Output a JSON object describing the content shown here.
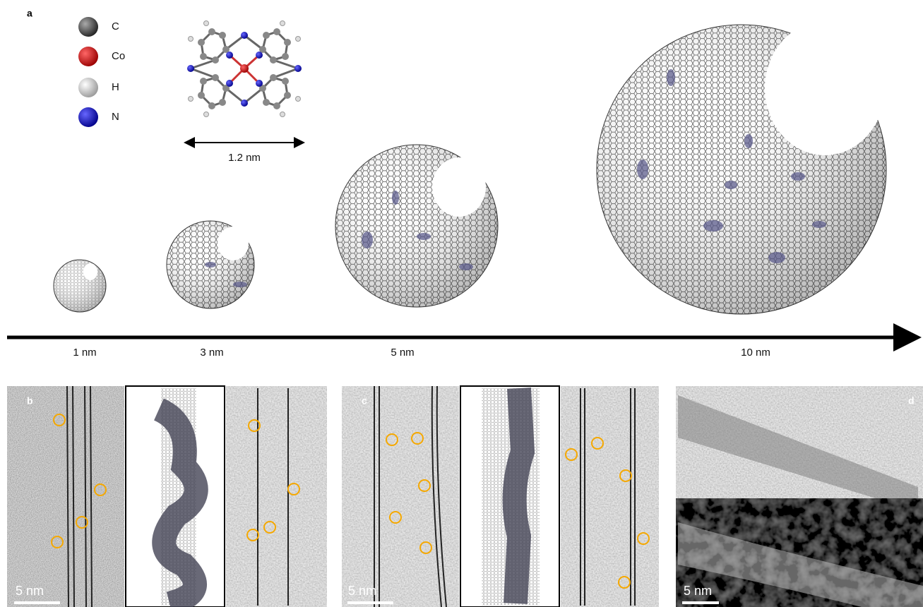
{
  "panel_a": {
    "label": "a",
    "legend": [
      "C",
      "Co",
      "H",
      "N"
    ],
    "molecule_width": "1.2 nm",
    "diameters": [
      "1 nm",
      "3 nm",
      "5 nm",
      "10 nm"
    ]
  },
  "panel_b": {
    "label": "b",
    "scale_bar": "5 nm"
  },
  "panel_c": {
    "label": "c",
    "scale_bar": "5 nm"
  },
  "panel_d": {
    "label": "d",
    "scale_bar": "5 nm"
  }
}
